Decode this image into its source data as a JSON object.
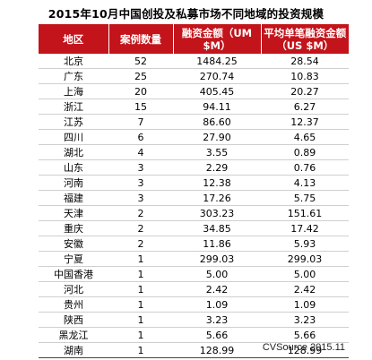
{
  "title": "2015年10月中国创投及私募市场不同地域的投资规模",
  "source": "CVSource 2015.11",
  "chart_data": {
    "type": "table",
    "title": "2015年10月中国创投及私募市场不同地域的投资规模",
    "columns": [
      "地区",
      "案例数量",
      "融资金额（UM $M）",
      "平均单笔融资金额（US $M）"
    ],
    "rows": [
      [
        "北京",
        "52",
        "1484.25",
        "28.54"
      ],
      [
        "广东",
        "25",
        "270.74",
        "10.83"
      ],
      [
        "上海",
        "20",
        "405.45",
        "20.27"
      ],
      [
        "浙江",
        "15",
        "94.11",
        "6.27"
      ],
      [
        "江苏",
        "7",
        "86.60",
        "12.37"
      ],
      [
        "四川",
        "6",
        "27.90",
        "4.65"
      ],
      [
        "湖北",
        "4",
        "3.55",
        "0.89"
      ],
      [
        "山东",
        "3",
        "2.29",
        "0.76"
      ],
      [
        "河南",
        "3",
        "12.38",
        "4.13"
      ],
      [
        "福建",
        "3",
        "17.26",
        "5.75"
      ],
      [
        "天津",
        "2",
        "303.23",
        "151.61"
      ],
      [
        "重庆",
        "2",
        "34.85",
        "17.42"
      ],
      [
        "安徽",
        "2",
        "11.86",
        "5.93"
      ],
      [
        "宁夏",
        "1",
        "299.03",
        "299.03"
      ],
      [
        "中国香港",
        "1",
        "5.00",
        "5.00"
      ],
      [
        "河北",
        "1",
        "2.42",
        "2.42"
      ],
      [
        "贵州",
        "1",
        "1.09",
        "1.09"
      ],
      [
        "陕西",
        "1",
        "3.23",
        "3.23"
      ],
      [
        "黑龙江",
        "1",
        "5.66",
        "5.66"
      ],
      [
        "湖南",
        "1",
        "128.99",
        "128.99"
      ]
    ]
  },
  "header_lines": [
    [
      "地区"
    ],
    [
      "案例数量"
    ],
    [
      "融资金额（UM",
      "$M）"
    ],
    [
      "平均单笔融资金额",
      "（US $M）"
    ]
  ],
  "colors": {
    "header_bg": "#c3141b",
    "header_text": "#ffffff",
    "row_divider": "#cfcfcf"
  }
}
